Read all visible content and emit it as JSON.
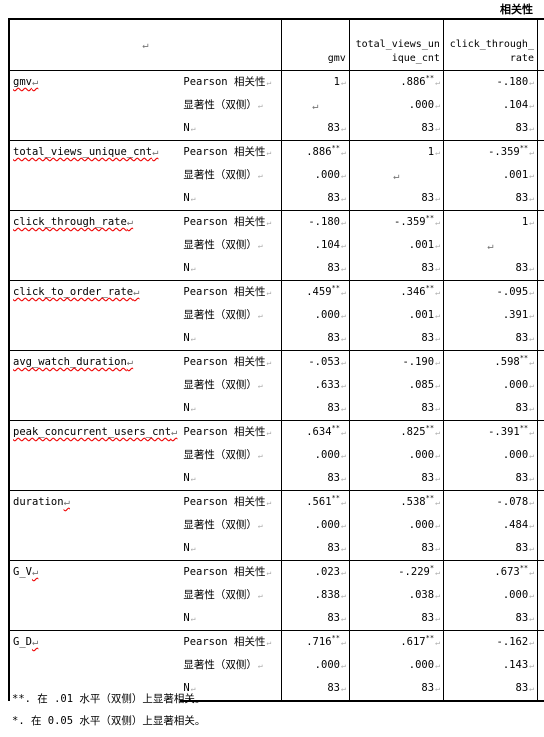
{
  "table_title": "相关性",
  "pilcrow": "↵",
  "cell_mark": "↵",
  "columns": [
    {
      "line1": "",
      "line2": "gmv"
    },
    {
      "line1": "total_views_un",
      "line2": "ique_cnt"
    },
    {
      "line1": "click_through_",
      "line2": "rate"
    }
  ],
  "stat_labels": {
    "pearson": "Pearson 相关性",
    "sig": "显著性（双侧）",
    "n": "N"
  },
  "variables": [
    {
      "name": "gmv",
      "underlined": true,
      "pearson": [
        "1",
        ".886**",
        "-.180"
      ],
      "sig": [
        "",
        ".000",
        ".104"
      ],
      "n": [
        "83",
        "83",
        "83"
      ]
    },
    {
      "name": "total_views_unique_cnt",
      "underlined": true,
      "pearson": [
        ".886**",
        "1",
        "-.359**"
      ],
      "sig": [
        ".000",
        "",
        ".001"
      ],
      "n": [
        "83",
        "83",
        "83"
      ]
    },
    {
      "name": "click_through_rate",
      "underlined": true,
      "pearson": [
        "-.180",
        "-.359**",
        "1"
      ],
      "sig": [
        ".104",
        ".001",
        ""
      ],
      "n": [
        "83",
        "83",
        "83"
      ]
    },
    {
      "name": "click_to_order_rate",
      "underlined": true,
      "pearson": [
        ".459**",
        ".346**",
        "-.095"
      ],
      "sig": [
        ".000",
        ".001",
        ".391"
      ],
      "n": [
        "83",
        "83",
        "83"
      ]
    },
    {
      "name": "avg_watch_duration",
      "underlined": true,
      "pearson": [
        "-.053",
        "-.190",
        ".598**"
      ],
      "sig": [
        ".633",
        ".085",
        ".000"
      ],
      "n": [
        "83",
        "83",
        "83"
      ]
    },
    {
      "name": "peak_concurrent_users_cnt",
      "underlined": true,
      "pearson": [
        ".634**",
        ".825**",
        "-.391**"
      ],
      "sig": [
        ".000",
        ".000",
        ".000"
      ],
      "n": [
        "83",
        "83",
        "83"
      ]
    },
    {
      "name": "duration",
      "underlined": false,
      "pearson": [
        ".561**",
        ".538**",
        "-.078"
      ],
      "sig": [
        ".000",
        ".000",
        ".484"
      ],
      "n": [
        "83",
        "83",
        "83"
      ]
    },
    {
      "name": "G_V",
      "underlined": false,
      "pearson": [
        ".023",
        "-.229*",
        ".673**"
      ],
      "sig": [
        ".838",
        ".038",
        ".000"
      ],
      "n": [
        "83",
        "83",
        "83"
      ]
    },
    {
      "name": "G_D",
      "underlined": false,
      "pearson": [
        ".716**",
        ".617**",
        "-.162"
      ],
      "sig": [
        ".000",
        ".000",
        ".143"
      ],
      "n": [
        "83",
        "83",
        "83"
      ]
    }
  ],
  "notes": [
    "**. 在 .01 水平（双侧）上显著相关。",
    "*. 在 0.05 水平（双侧）上显著相关。"
  ]
}
